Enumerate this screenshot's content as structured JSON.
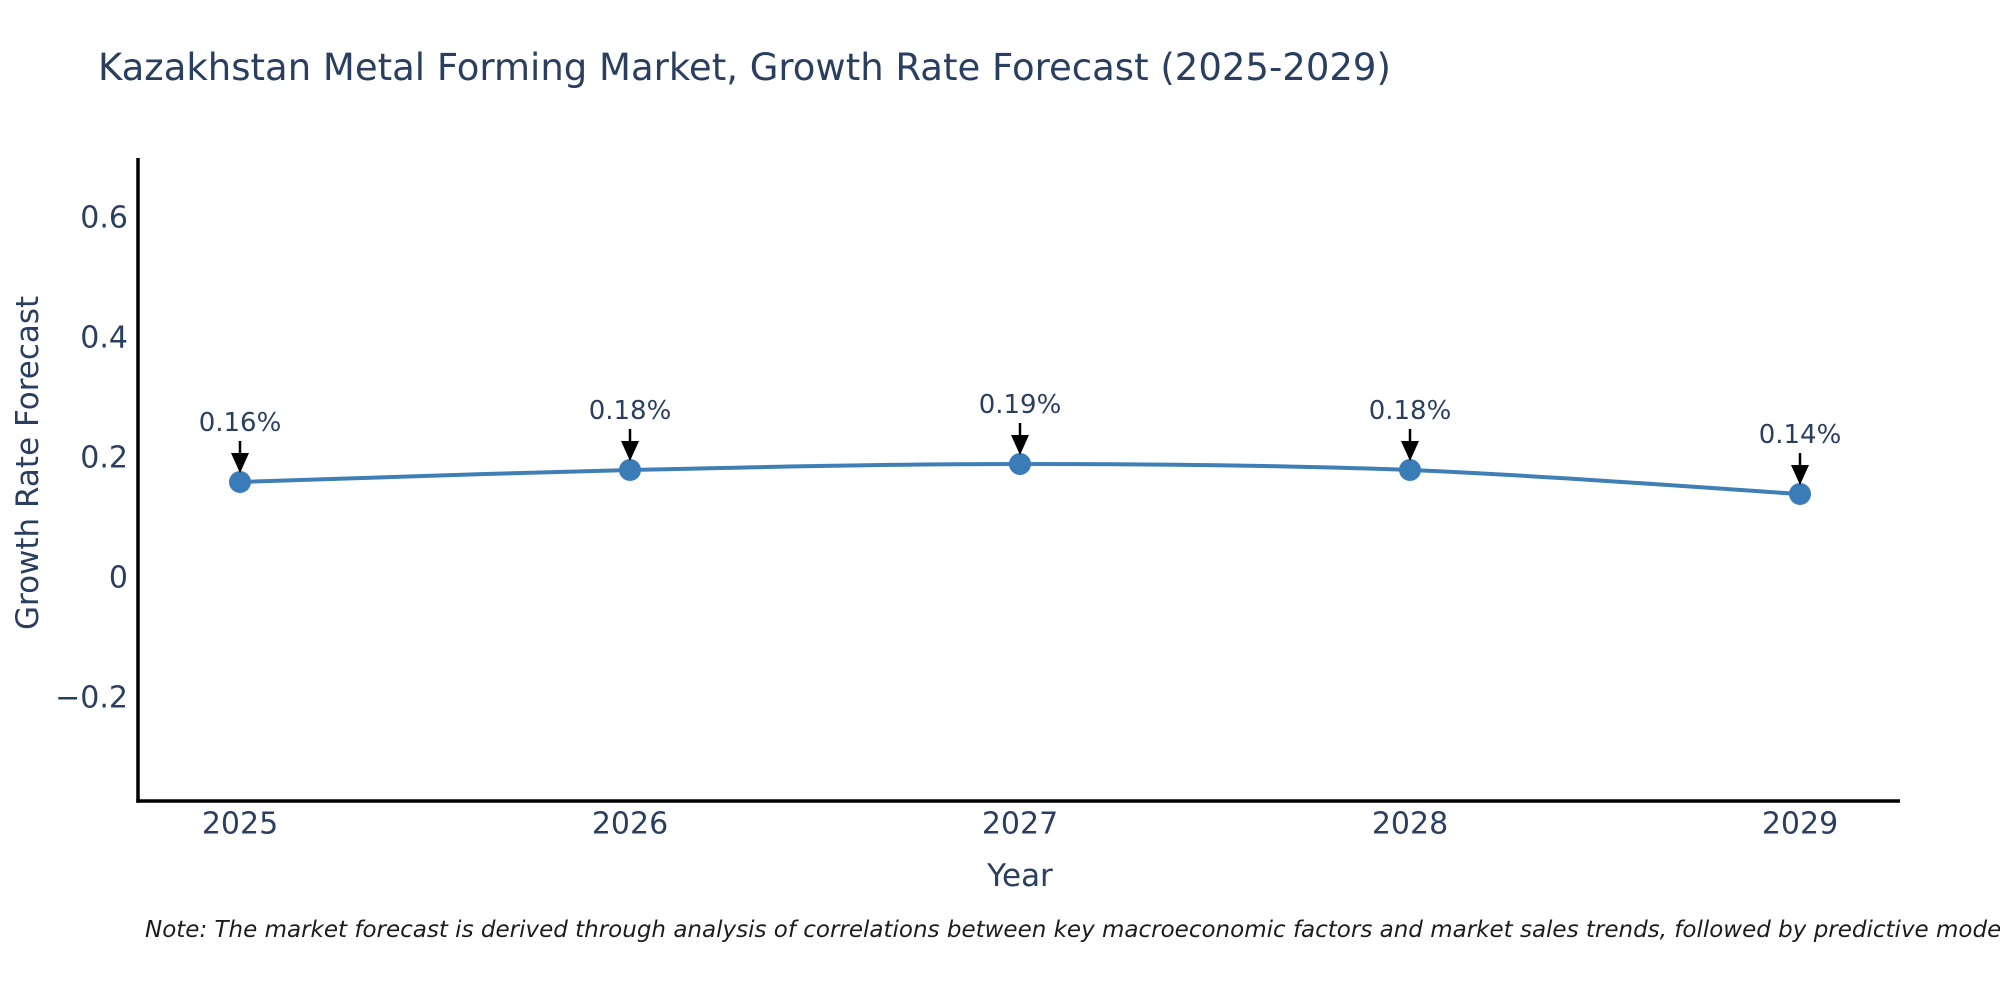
{
  "title": "Kazakhstan Metal Forming Market, Growth Rate Forecast (2025-2029)",
  "note": "Note: The market forecast is derived through analysis of correlations between key macroeconomic factors and market sales trends, followed by predictive modeling to project future sa",
  "chart_data": {
    "type": "line",
    "title": "Kazakhstan Metal Forming Market, Growth Rate Forecast (2025-2029)",
    "xlabel": "Year",
    "ylabel": "Growth Rate Forecast",
    "x": [
      2025,
      2026,
      2027,
      2028,
      2029
    ],
    "x_tick_labels": [
      "2025",
      "2026",
      "2027",
      "2028",
      "2029"
    ],
    "series": [
      {
        "name": "Growth Rate Forecast",
        "values": [
          0.16,
          0.18,
          0.19,
          0.18,
          0.14
        ],
        "point_labels": [
          "0.16%",
          "0.18%",
          "0.19%",
          "0.18%",
          "0.14%"
        ]
      }
    ],
    "y_ticks": [
      {
        "value": 0.6,
        "label": "0.6"
      },
      {
        "value": 0.4,
        "label": "0.4"
      },
      {
        "value": 0.2,
        "label": "0.2"
      },
      {
        "value": 0,
        "label": "0"
      },
      {
        "value": -0.2,
        "label": "−0.2"
      }
    ],
    "ylim": [
      -0.37,
      0.7
    ],
    "grid": false,
    "legend": "none",
    "line_shape": "spline",
    "colors": {
      "line": "#3f7fb5",
      "marker": "#3a7cb8",
      "axis": "#000000",
      "text": "#2a3f5f",
      "annotation_arrow": "#000000",
      "background": "#ffffff"
    }
  }
}
